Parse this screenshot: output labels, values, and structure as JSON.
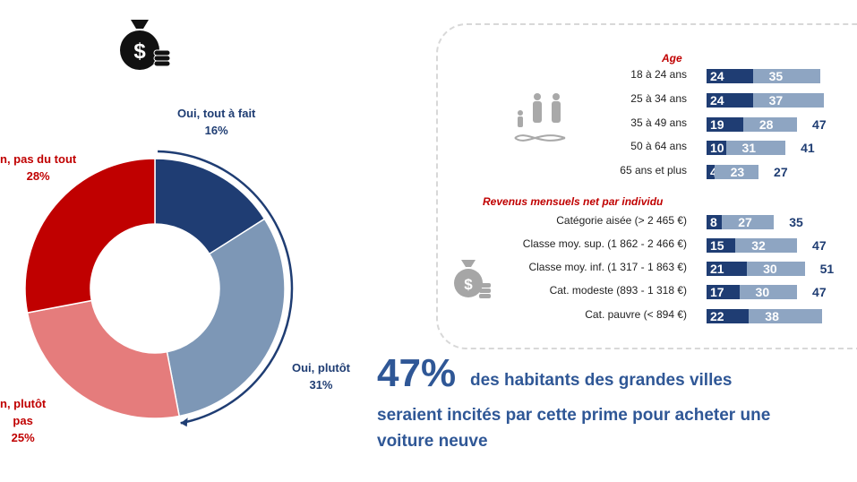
{
  "colors": {
    "dark_blue": "#1f3d73",
    "light_blue": "#8ea5c2",
    "red": "#c00000",
    "pink": "#e57c7c",
    "steel": "#7d97b6"
  },
  "chart_data": [
    {
      "type": "pie",
      "categories": [
        "Oui, tout à fait",
        "Oui, plutôt",
        "Non, plutôt pas",
        "Non, pas du tout"
      ],
      "values": [
        16,
        31,
        25,
        28
      ],
      "labels": [
        {
          "text": "Oui, tout à fait",
          "value": "16%"
        },
        {
          "text": "Oui, plutôt",
          "value": "31%"
        },
        {
          "text": "n, plutôt",
          "text2": "pas",
          "value": "25%"
        },
        {
          "text": "n, pas du tout",
          "value": "28%"
        }
      ],
      "colors": [
        "#1f3d73",
        "#7d97b6",
        "#e57c7c",
        "#c00000"
      ]
    },
    {
      "type": "bar",
      "orientation": "horizontal",
      "stacked": true,
      "groups": [
        {
          "title": "Age",
          "categories": [
            "18 à 24 ans",
            "25 à 34 ans",
            "35 à 49 ans",
            "50 à 64 ans",
            "65 ans et plus"
          ],
          "series": [
            {
              "values": [
                24,
                24,
                19,
                10,
                4
              ]
            },
            {
              "values": [
                35,
                37,
                28,
                31,
                23
              ]
            }
          ],
          "totals": [
            "",
            "",
            "47",
            "41",
            "27"
          ]
        },
        {
          "title": "Revenus mensuels net par individu",
          "categories": [
            "Catégorie aisée (> 2 465 €)",
            "Classe moy. sup. (1 862 - 2 466 €)",
            "Classe moy. inf. (1 317 - 1 863 €)",
            "Cat. modeste (893 - 1 318 €)",
            "Cat. pauvre (< 894 €)"
          ],
          "series": [
            {
              "values": [
                8,
                15,
                21,
                17,
                22
              ]
            },
            {
              "values": [
                27,
                32,
                30,
                30,
                38
              ]
            }
          ],
          "totals": [
            "35",
            "47",
            "51",
            "47",
            ""
          ]
        }
      ]
    }
  ],
  "headline": {
    "percent": "47%",
    "line1": "des habitants des grandes villes",
    "line2": "seraient incités par cette prime pour acheter une",
    "line3": "voiture neuve"
  },
  "icons": [
    "money-bag-icon",
    "family-dna-icon",
    "money-bag-gray-icon"
  ]
}
